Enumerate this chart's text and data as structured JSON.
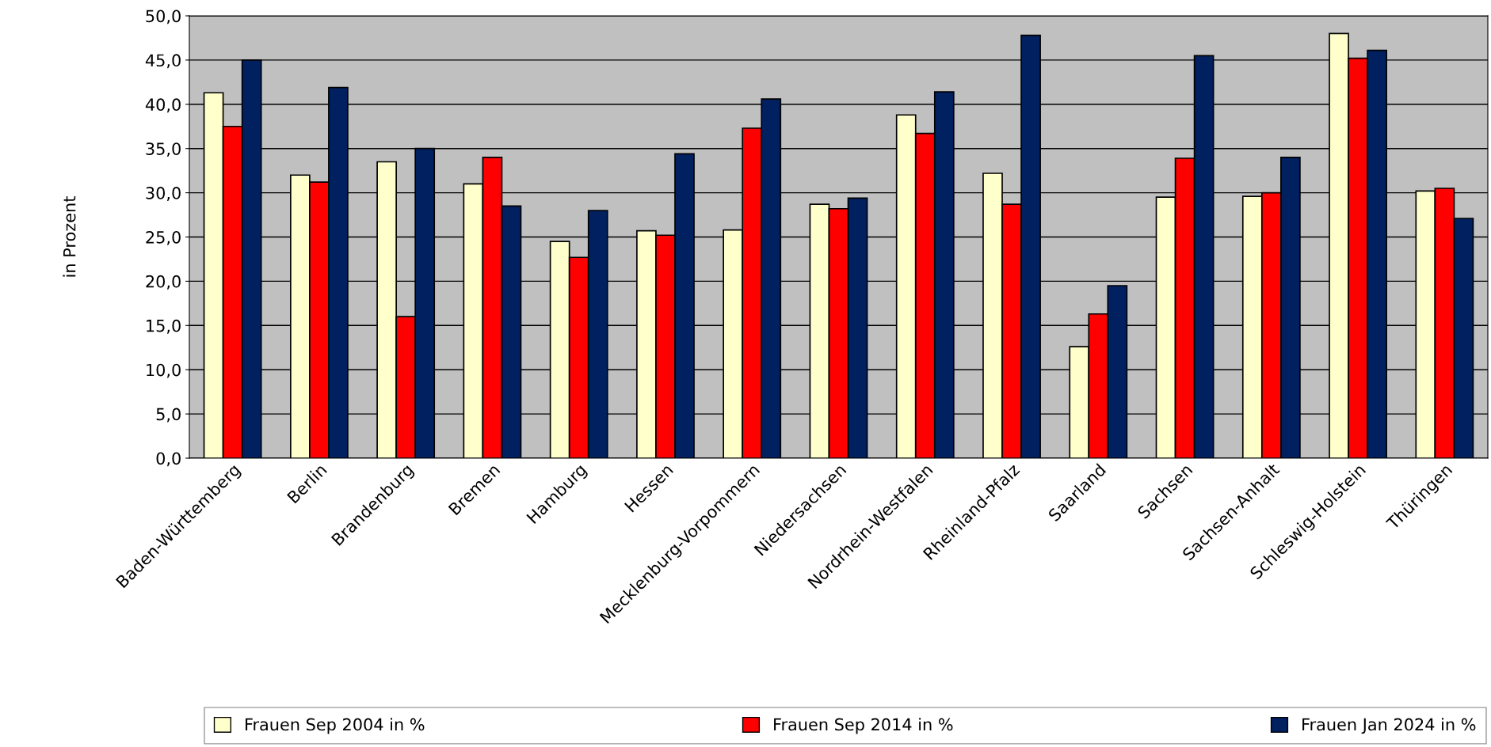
{
  "chart_data": {
    "type": "bar",
    "ylabel": "in Prozent",
    "categories": [
      "Baden-Württemberg",
      "Berlin",
      "Brandenburg",
      "Bremen",
      "Hamburg",
      "Hessen",
      "Mecklenburg-Vorpommern",
      "Niedersachsen",
      "Nordrhein-Westfalen",
      "Rheinland-Pfalz",
      "Saarland",
      "Sachsen",
      "Sachsen-Anhalt",
      "Schleswig-Holstein",
      "Thüringen"
    ],
    "series": [
      {
        "name": "Frauen Sep 2004 in %",
        "color": "#ffffcc",
        "values": [
          41.3,
          32.0,
          33.5,
          31.0,
          24.5,
          25.7,
          25.8,
          28.7,
          38.8,
          32.2,
          12.6,
          29.5,
          29.6,
          48.0,
          30.2
        ]
      },
      {
        "name": "Frauen Sep 2014 in %",
        "color": "#ff0000",
        "values": [
          37.5,
          31.2,
          16.0,
          34.0,
          22.7,
          25.2,
          37.3,
          28.2,
          36.7,
          28.7,
          16.3,
          33.9,
          30.0,
          45.2,
          30.5
        ]
      },
      {
        "name": "Frauen Jan 2024 in %",
        "color": "#002060",
        "values": [
          45.0,
          41.9,
          35.0,
          28.5,
          28.0,
          34.4,
          40.6,
          29.4,
          41.4,
          47.8,
          19.5,
          45.5,
          34.0,
          46.1,
          27.1
        ]
      }
    ],
    "ylim": [
      0,
      50
    ],
    "yticks": [
      {
        "value": 0,
        "label": "0,0"
      },
      {
        "value": 5,
        "label": "5,0"
      },
      {
        "value": 10,
        "label": "10,0"
      },
      {
        "value": 15,
        "label": "15,0"
      },
      {
        "value": 20,
        "label": "20,0"
      },
      {
        "value": 25,
        "label": "25,0"
      },
      {
        "value": 30,
        "label": "30,0"
      },
      {
        "value": 35,
        "label": "35,0"
      },
      {
        "value": 40,
        "label": "40,0"
      },
      {
        "value": 45,
        "label": "45,0"
      },
      {
        "value": 50,
        "label": "50,0"
      }
    ],
    "grid": "y",
    "legend": "bottom"
  }
}
